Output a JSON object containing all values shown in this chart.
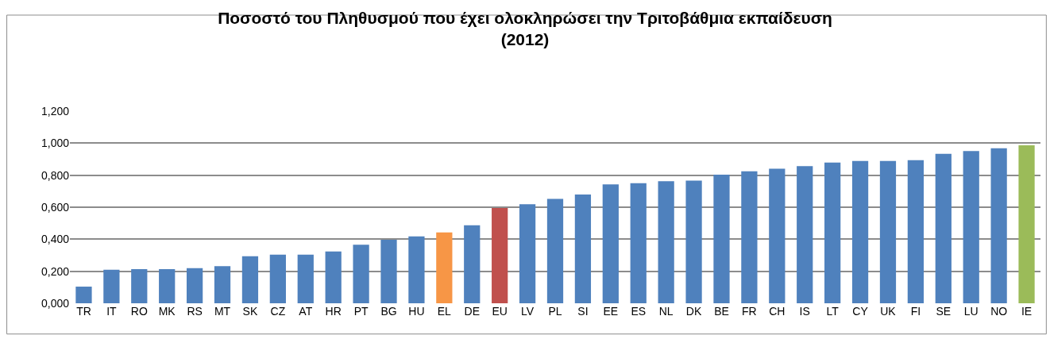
{
  "chart_data": {
    "type": "bar",
    "title": "Ποσοστό του Πληθυσμού που έχει ολοκληρώσει την Τριτοβάθμια εκπαίδευση\n(2012)",
    "categories": [
      "TR",
      "IT",
      "RO",
      "MK",
      "RS",
      "MT",
      "SK",
      "CZ",
      "AT",
      "HR",
      "PT",
      "BG",
      "HU",
      "EL",
      "DE",
      "EU",
      "LV",
      "PL",
      "SI",
      "EE",
      "ES",
      "NL",
      "DK",
      "BE",
      "FR",
      "CH",
      "IS",
      "LT",
      "CY",
      "UK",
      "FI",
      "SE",
      "LU",
      "NO",
      "IE"
    ],
    "values": [
      0.104,
      0.21,
      0.213,
      0.213,
      0.22,
      0.232,
      0.294,
      0.304,
      0.304,
      0.324,
      0.366,
      0.397,
      0.418,
      0.442,
      0.487,
      0.595,
      0.618,
      0.652,
      0.679,
      0.743,
      0.75,
      0.763,
      0.766,
      0.803,
      0.824,
      0.84,
      0.857,
      0.879,
      0.889,
      0.889,
      0.894,
      0.933,
      0.951,
      0.968,
      0.987
    ],
    "colors": [
      "#4f81bd",
      "#4f81bd",
      "#4f81bd",
      "#4f81bd",
      "#4f81bd",
      "#4f81bd",
      "#4f81bd",
      "#4f81bd",
      "#4f81bd",
      "#4f81bd",
      "#4f81bd",
      "#4f81bd",
      "#4f81bd",
      "#f79646",
      "#4f81bd",
      "#c0504d",
      "#4f81bd",
      "#4f81bd",
      "#4f81bd",
      "#4f81bd",
      "#4f81bd",
      "#4f81bd",
      "#4f81bd",
      "#4f81bd",
      "#4f81bd",
      "#4f81bd",
      "#4f81bd",
      "#4f81bd",
      "#4f81bd",
      "#4f81bd",
      "#4f81bd",
      "#4f81bd",
      "#4f81bd",
      "#4f81bd",
      "#9bbb59"
    ],
    "ylim": [
      0,
      1.2
    ],
    "yticks": [
      {
        "value": 0,
        "label": "0,000"
      },
      {
        "value": 0.2,
        "label": "0,200"
      },
      {
        "value": 0.4,
        "label": "0,400"
      },
      {
        "value": 0.6,
        "label": "0,600"
      },
      {
        "value": 0.8,
        "label": "0,800"
      },
      {
        "value": 1.0,
        "label": "1,000"
      },
      {
        "value": 1.2,
        "label": "1,200"
      }
    ],
    "grid": "y"
  }
}
